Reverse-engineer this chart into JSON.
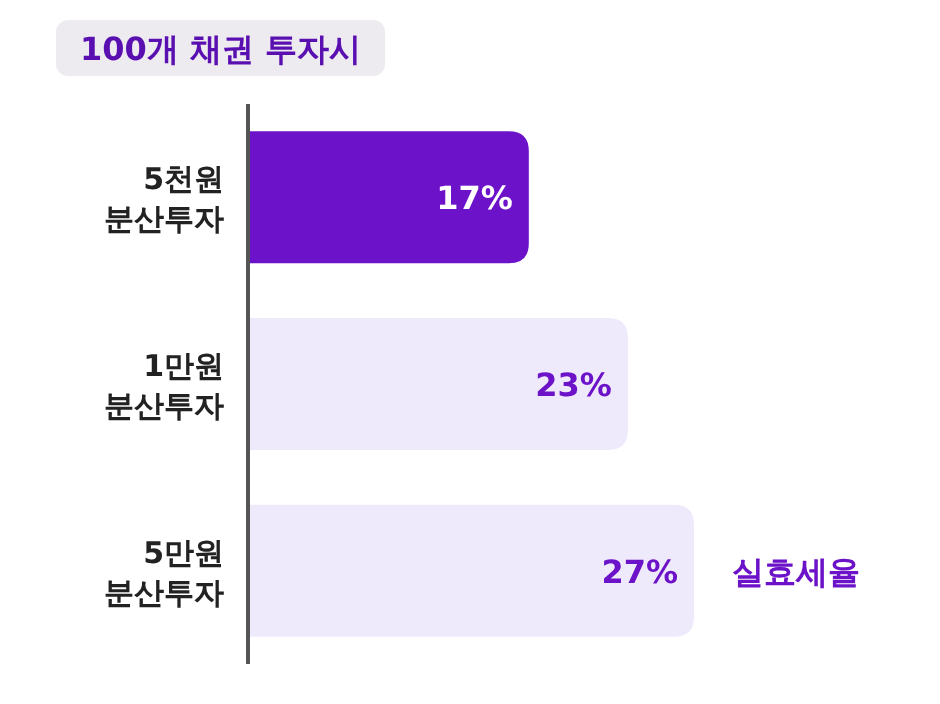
{
  "chart_data": {
    "type": "bar",
    "orientation": "horizontal",
    "title": "100개 채권 투자시",
    "categories": [
      "5천원\n분산투자",
      "1만원\n분산투자",
      "5만원\n분산투자"
    ],
    "values": [
      17,
      23,
      27
    ],
    "value_labels": [
      "17%",
      "23%",
      "27%"
    ],
    "colors": [
      "#6c12c8",
      "#efeafb",
      "#efeafb"
    ],
    "annotations": [
      "실효세율"
    ]
  }
}
